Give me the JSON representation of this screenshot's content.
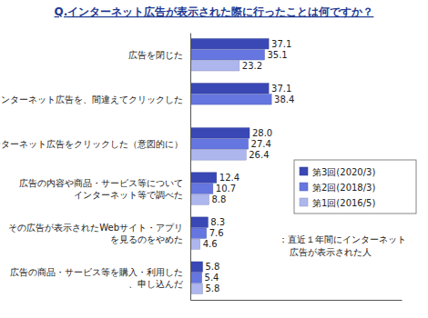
{
  "chart_data": {
    "type": "bar",
    "orientation": "horizontal",
    "title": "Q.インターネット広告が表示された際に行ったことは何ですか？",
    "annotation": "：直近１年間にインターネット\n広告が表示された人",
    "categories": [
      "広告を閉じた",
      "インターネット広告を、間違えてクリックした",
      "インターネット広告をクリックした（意図的に）",
      "広告の内容や商品・サービス等について\nインターネット等で調べた",
      "その広告が表示されたWebサイト・アプリ\nを見るのをやめた",
      "広告の商品・サービス等を購入・利用した\n、申し込んだ"
    ],
    "series": [
      {
        "name": "第3回(2020/3)",
        "color": "#3a48b5",
        "values": [
          37.1,
          37.1,
          28.0,
          12.4,
          8.3,
          5.8
        ],
        "value_labels": [
          "37.1",
          "37.1",
          "28.0",
          "12.4",
          "8.3",
          "5.8"
        ]
      },
      {
        "name": "第2回(2018/3)",
        "color": "#6676e0",
        "values": [
          35.1,
          38.4,
          27.4,
          10.7,
          7.6,
          5.4
        ],
        "value_labels": [
          "35.1",
          "38.4",
          "27.4",
          "10.7",
          "7.6",
          "5.4"
        ]
      },
      {
        "name": "第1回(2016/5)",
        "color": "#aeb6ee",
        "values": [
          23.2,
          null,
          26.4,
          8.8,
          4.6,
          5.8
        ],
        "value_labels": [
          "23.2",
          null,
          "26.4",
          "8.8",
          "4.6",
          "5.8"
        ]
      }
    ],
    "xlim": [
      0,
      100
    ],
    "xticks": [],
    "tick_labels": false,
    "grid": false,
    "legend": "right",
    "data_labels": true
  }
}
